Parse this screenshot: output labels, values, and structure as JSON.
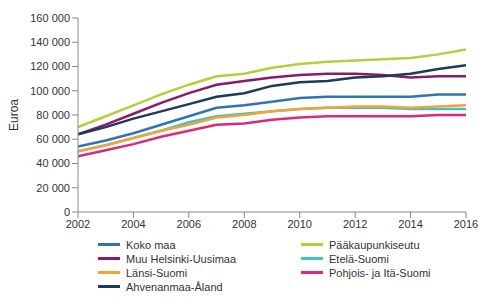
{
  "chart_data": {
    "type": "line",
    "y_label": "Euroa",
    "x": [
      2002,
      2003,
      2004,
      2005,
      2006,
      2007,
      2008,
      2009,
      2010,
      2011,
      2012,
      2013,
      2014,
      2015,
      2016
    ],
    "xlim": [
      2002,
      2016
    ],
    "xticks": [
      2002,
      2004,
      2006,
      2008,
      2010,
      2012,
      2014,
      2016
    ],
    "ylim": [
      0,
      160000
    ],
    "yticks": [
      0,
      {
        "value": 20000,
        "label": "20 000"
      },
      {
        "value": 40000,
        "label": "40 000"
      },
      {
        "value": 60000,
        "label": "60 000"
      },
      {
        "value": 80000,
        "label": "80 000"
      },
      {
        "value": 100000,
        "label": "100 000"
      },
      {
        "value": 120000,
        "label": "120 000"
      },
      {
        "value": 140000,
        "label": "140 000"
      },
      {
        "value": 160000,
        "label": "160 000"
      }
    ],
    "grid": false,
    "legend": "bottom",
    "series": [
      {
        "name": "Koko maa",
        "color": "#2f74b5",
        "values": [
          54000,
          59000,
          65000,
          72000,
          79000,
          86000,
          88000,
          91000,
          94000,
          95000,
          95000,
          95000,
          95000,
          97000,
          97000
        ]
      },
      {
        "name": "Pääkaupunkiseutu",
        "color": "#b5cf3c",
        "values": [
          70000,
          79000,
          88000,
          97000,
          105000,
          112000,
          114000,
          119000,
          122000,
          124000,
          125000,
          126000,
          127000,
          130000,
          134000
        ]
      },
      {
        "name": "Muu Helsinki-Uusimaa",
        "color": "#8a1a6a",
        "values": [
          64000,
          72000,
          81000,
          90000,
          98000,
          105000,
          108000,
          111000,
          113000,
          114000,
          114000,
          113000,
          111000,
          112000,
          112000
        ]
      },
      {
        "name": "Etelä-Suomi",
        "color": "#3dc4c4",
        "values": [
          50000,
          55000,
          61000,
          67000,
          74000,
          79000,
          81000,
          83000,
          85000,
          86000,
          86000,
          86000,
          85000,
          85000,
          85000
        ]
      },
      {
        "name": "Länsi-Suomi",
        "color": "#f2a33a",
        "values": [
          50000,
          55000,
          61000,
          67000,
          72000,
          78000,
          80000,
          83000,
          85000,
          86000,
          87000,
          87000,
          86000,
          87000,
          88000
        ]
      },
      {
        "name": "Pohjois- ja Itä-Suomi",
        "color": "#e0287a",
        "values": [
          46000,
          51000,
          56000,
          62000,
          67000,
          72000,
          73000,
          76000,
          78000,
          79000,
          79000,
          79000,
          79000,
          80000,
          80000
        ]
      },
      {
        "name": "Ahvenanmaa-Åland",
        "color": "#1c3a5a",
        "values": [
          64000,
          70000,
          77000,
          83000,
          89000,
          95000,
          98000,
          104000,
          107000,
          108000,
          111000,
          112000,
          114000,
          118000,
          121000
        ]
      }
    ]
  }
}
